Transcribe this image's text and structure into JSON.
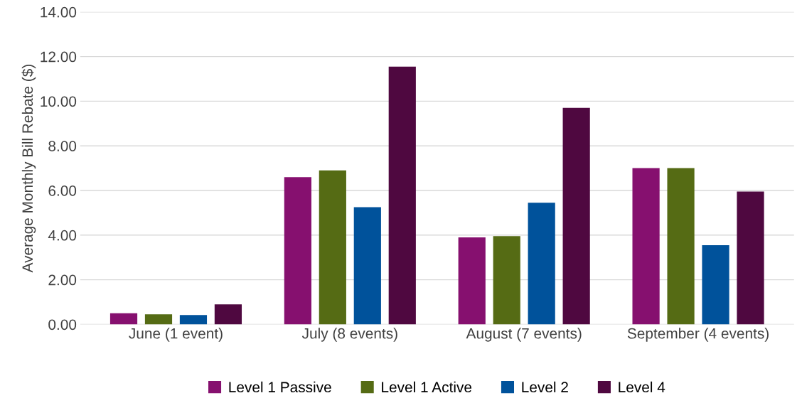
{
  "chart_data": {
    "type": "bar",
    "ylabel": "Average Monthly Bill Rebate ($)",
    "categories": [
      "June (1 event)",
      "July (8 events)",
      "August (7 events)",
      "September (4 events)"
    ],
    "series": [
      {
        "name": "Level 1 Passive",
        "color": "#86106f",
        "values": [
          0.5,
          6.6,
          3.9,
          7.0
        ]
      },
      {
        "name": "Level 1 Active",
        "color": "#556b14",
        "values": [
          0.45,
          6.9,
          3.95,
          7.0
        ]
      },
      {
        "name": "Level 2",
        "color": "#00529b",
        "values": [
          0.42,
          5.25,
          5.45,
          3.55
        ]
      },
      {
        "name": "Level 4",
        "color": "#4f0840",
        "values": [
          0.9,
          11.55,
          9.7,
          5.95
        ]
      }
    ],
    "ylim": [
      0,
      14
    ],
    "yticks": [
      {
        "value": 0,
        "label": "0.00"
      },
      {
        "value": 2,
        "label": "2.00"
      },
      {
        "value": 4,
        "label": "4.00"
      },
      {
        "value": 6,
        "label": "6.00"
      },
      {
        "value": 8,
        "label": "8.00"
      },
      {
        "value": 10,
        "label": "10.00"
      },
      {
        "value": 12,
        "label": "12.00"
      },
      {
        "value": 14,
        "label": "14.00"
      }
    ],
    "grid": "y",
    "legend": "bottom"
  }
}
